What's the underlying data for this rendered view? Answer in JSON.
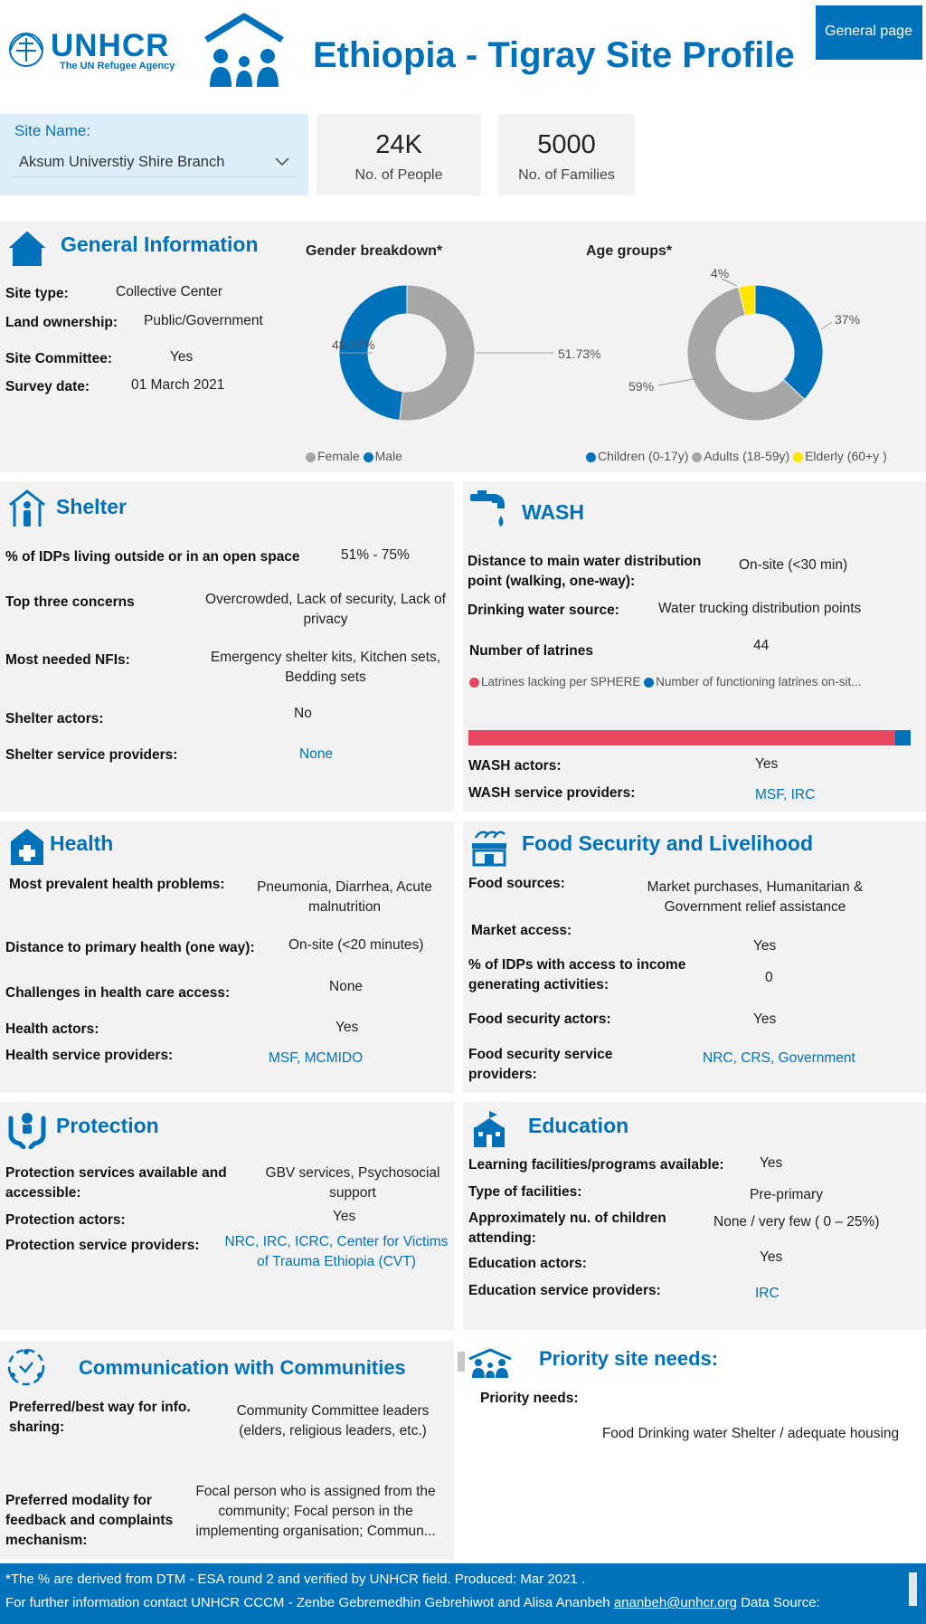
{
  "header": {
    "logo_name": "UNHCR",
    "logo_sub": "The UN Refugee Agency",
    "title": "Ethiopia - Tigray Site Profile",
    "general_page_button": "General page"
  },
  "site_selector": {
    "label": "Site Name:",
    "value": "Aksum Universtiy Shire Branch"
  },
  "kpis": [
    {
      "value": "24K",
      "label": "No. of People"
    },
    {
      "value": "5000",
      "label": "No. of Families"
    }
  ],
  "general_info": {
    "title": "General Information",
    "rows": [
      {
        "label": "Site type:",
        "value": "Collective Center"
      },
      {
        "label": "Land ownership:",
        "value": "Public/Government"
      },
      {
        "label": "Site  Committee:",
        "value": "Yes"
      },
      {
        "label": "Survey date:",
        "value": "01 March 2021"
      }
    ]
  },
  "chart_data": [
    {
      "type": "pie",
      "title": "Gender breakdown*",
      "categories": [
        "Female",
        "Male"
      ],
      "values": [
        51.73,
        48.27
      ],
      "data_labels": [
        "51.73%",
        "48.27%"
      ],
      "colors": [
        "#a6a6a6",
        "#0072bc"
      ],
      "legend_position": "bottom"
    },
    {
      "type": "pie",
      "title": "Age groups*",
      "categories": [
        "Children (0-17y)",
        "Adults (18-59y)",
        "Elderly (60+y )"
      ],
      "values": [
        37,
        59,
        4
      ],
      "data_labels": [
        "37%",
        "59%",
        "4%"
      ],
      "colors": [
        "#0072bc",
        "#a6a6a6",
        "#ffe600"
      ],
      "legend_position": "bottom"
    },
    {
      "type": "bar",
      "categories": [
        "Latrines lacking per SPHERE",
        "Number of functioning latrines on-sit..."
      ],
      "values": [
        96.5,
        3.5
      ],
      "colors": [
        "#e8475f",
        "#0072bc"
      ],
      "legend_position": "top"
    }
  ],
  "shelter": {
    "title": "Shelter",
    "rows": [
      {
        "label": "% of IDPs living outside or in an open space",
        "value": "51% - 75%"
      },
      {
        "label": "Top  three concerns",
        "value": "Overcrowded, Lack of security, Lack of privacy"
      },
      {
        "label": "Most needed NFIs:",
        "value": "Emergency shelter kits, Kitchen sets, Bedding sets"
      },
      {
        "label": "Shelter actors:",
        "value": "No"
      },
      {
        "label": "Shelter service providers:",
        "value": "None"
      }
    ]
  },
  "wash": {
    "title": "WASH",
    "rows": [
      {
        "label": "Distance to main water distribution point (walking, one-way):",
        "value": "On-site (<30 min)"
      },
      {
        "label": "Drinking water source:",
        "value": "Water trucking distribution points"
      },
      {
        "label": "Number of latrines",
        "value": "44"
      },
      {
        "label": "WASH actors:",
        "value": "Yes"
      },
      {
        "label": "WASH service providers:",
        "value": "MSF, IRC"
      }
    ]
  },
  "health": {
    "title": "Health",
    "rows": [
      {
        "label": "Most prevalent health problems:",
        "value": "Pneumonia, Diarrhea, Acute malnutrition"
      },
      {
        "label": "Distance to primary health (one way):",
        "value": "On-site (<20 minutes)"
      },
      {
        "label": "Challenges in health care access:",
        "value": "None"
      },
      {
        "label": "Health actors:",
        "value": "Yes"
      },
      {
        "label": "Health service providers:",
        "value": "MSF, MCMIDO"
      }
    ]
  },
  "food": {
    "title": "Food Security and Livelihood",
    "rows": [
      {
        "label": "Food sources:",
        "value": "Market purchases, Humanitarian & Government relief assistance"
      },
      {
        "label": "Market access:",
        "value": "Yes"
      },
      {
        "label": "% of IDPs with access to income generating activities:",
        "value": "0"
      },
      {
        "label": "Food security actors:",
        "value": "Yes"
      },
      {
        "label": "Food security service providers:",
        "value": "NRC, CRS, Government"
      }
    ]
  },
  "protection": {
    "title": "Protection",
    "rows": [
      {
        "label": "Protection services  available and accessible:",
        "value": "GBV services, Psychosocial support"
      },
      {
        "label": "Protection actors:",
        "value": "Yes"
      },
      {
        "label": "Protection service providers:",
        "value": "NRC, IRC, ICRC, Center for Victims of Trauma Ethiopia (CVT)"
      }
    ]
  },
  "education": {
    "title": "Education",
    "rows": [
      {
        "label": "Learning facilities/programs available:",
        "value": "Yes"
      },
      {
        "label": "Type of facilities:",
        "value": "Pre-primary"
      },
      {
        "label": "Approximately nu. of children attending:",
        "value": "None / very few ( 0 – 25%)"
      },
      {
        "label": "Education actors:",
        "value": "Yes"
      },
      {
        "label": "Education service providers:",
        "value": "IRC"
      }
    ]
  },
  "communication": {
    "title": "Communication with Communities",
    "rows": [
      {
        "label": "Preferred/best way for info. sharing:",
        "value": "Community Committee leaders (elders, religious leaders, etc.)"
      },
      {
        "label": "Preferred modality for feedback and complaints mechanism:",
        "value": "Focal person who is assigned from the community; Focal person in the implementing organisation; Commun..."
      }
    ]
  },
  "priority": {
    "title": "Priority site needs:",
    "label": "Priority needs:",
    "value": "Food Drinking water Shelter / adequate housing"
  },
  "footer": {
    "line1": "*The % are derived from DTM - ESA round 2 and verified by UNHCR field.  Produced: Mar 2021 .",
    "line2_prefix": "For further information contact UNHCR CCCM - Zenbe Gebremedhin Gebrehiwot  and Alisa Ananbeh ",
    "email": "ananbeh@unhcr.org",
    "line2_suffix": "  Data Source:"
  }
}
